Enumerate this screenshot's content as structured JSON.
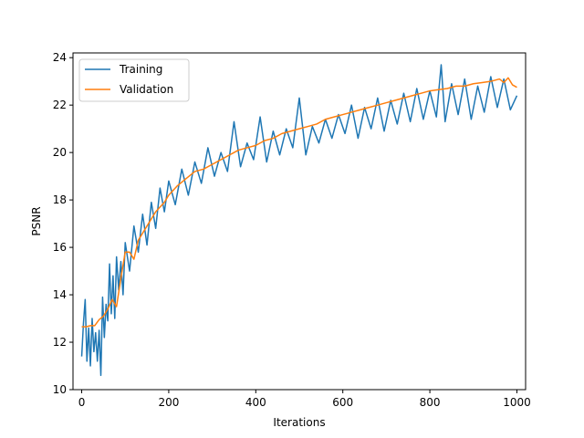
{
  "chart_data": {
    "type": "line",
    "title": "",
    "xlabel": "Iterations",
    "ylabel": "PSNR",
    "xlim": [
      -20,
      1020
    ],
    "ylim": [
      10,
      24.2
    ],
    "xticks": [
      0,
      200,
      400,
      600,
      800,
      1000
    ],
    "yticks": [
      10,
      12,
      14,
      16,
      18,
      20,
      22,
      24
    ],
    "xtick_labels": [
      "0",
      "200",
      "400",
      "600",
      "800",
      "1000"
    ],
    "ytick_labels": [
      "10",
      "12",
      "14",
      "16",
      "18",
      "20",
      "22",
      "24"
    ],
    "grid": false,
    "legend_position": "upper-left",
    "series": [
      {
        "name": "Training",
        "color": "#1f77b4",
        "x": [
          0,
          4,
          8,
          12,
          16,
          20,
          24,
          28,
          32,
          36,
          40,
          44,
          48,
          52,
          56,
          60,
          64,
          68,
          72,
          76,
          80,
          85,
          90,
          95,
          100,
          110,
          120,
          130,
          140,
          150,
          160,
          170,
          180,
          190,
          200,
          215,
          230,
          245,
          260,
          275,
          290,
          305,
          320,
          335,
          350,
          365,
          380,
          395,
          410,
          425,
          440,
          455,
          470,
          485,
          500,
          515,
          530,
          545,
          560,
          575,
          590,
          605,
          620,
          635,
          650,
          665,
          680,
          695,
          710,
          725,
          740,
          755,
          770,
          785,
          800,
          815,
          826,
          835,
          850,
          865,
          880,
          895,
          910,
          925,
          940,
          955,
          970,
          985,
          1000
        ],
        "values": [
          11.4,
          12.8,
          13.8,
          11.2,
          12.6,
          11.0,
          13.0,
          11.6,
          12.4,
          11.2,
          12.5,
          10.6,
          13.9,
          12.2,
          13.6,
          12.9,
          15.3,
          13.2,
          14.8,
          13.0,
          15.6,
          14.2,
          15.4,
          14.0,
          16.2,
          15.0,
          16.9,
          15.8,
          17.4,
          16.1,
          17.9,
          16.8,
          18.5,
          17.5,
          18.8,
          17.8,
          19.3,
          18.2,
          19.6,
          18.7,
          20.2,
          19.0,
          20.0,
          19.2,
          21.3,
          19.4,
          20.4,
          19.7,
          21.5,
          19.6,
          20.9,
          19.9,
          21.0,
          20.2,
          22.3,
          19.9,
          21.1,
          20.4,
          21.4,
          20.6,
          21.6,
          20.8,
          22.0,
          20.6,
          21.9,
          21.0,
          22.3,
          20.9,
          22.2,
          21.2,
          22.5,
          21.3,
          22.7,
          21.4,
          22.6,
          21.5,
          23.7,
          21.3,
          22.9,
          21.6,
          23.1,
          21.4,
          22.8,
          21.7,
          23.2,
          21.9,
          23.1,
          21.8,
          22.4
        ]
      },
      {
        "name": "Validation",
        "color": "#ff7f0e",
        "x": [
          0,
          10,
          20,
          30,
          40,
          50,
          60,
          70,
          80,
          90,
          100,
          110,
          120,
          130,
          140,
          150,
          160,
          170,
          180,
          190,
          200,
          220,
          240,
          260,
          280,
          300,
          320,
          340,
          360,
          380,
          400,
          420,
          440,
          460,
          480,
          500,
          520,
          540,
          560,
          580,
          600,
          620,
          640,
          660,
          680,
          700,
          720,
          740,
          760,
          780,
          800,
          820,
          840,
          860,
          880,
          900,
          920,
          940,
          960,
          970,
          980,
          990,
          1000
        ],
        "values": [
          12.65,
          12.65,
          12.7,
          12.7,
          12.95,
          13.1,
          13.4,
          13.8,
          13.5,
          14.7,
          15.8,
          15.8,
          15.5,
          16.3,
          16.6,
          16.9,
          17.2,
          17.5,
          17.7,
          17.9,
          18.2,
          18.6,
          18.9,
          19.2,
          19.3,
          19.5,
          19.7,
          19.9,
          20.1,
          20.2,
          20.3,
          20.5,
          20.6,
          20.8,
          20.9,
          21.0,
          21.1,
          21.2,
          21.4,
          21.5,
          21.6,
          21.7,
          21.8,
          21.9,
          22.0,
          22.1,
          22.2,
          22.3,
          22.4,
          22.5,
          22.6,
          22.65,
          22.7,
          22.8,
          22.8,
          22.9,
          22.95,
          23.0,
          23.1,
          22.95,
          23.15,
          22.85,
          22.75
        ]
      }
    ]
  }
}
